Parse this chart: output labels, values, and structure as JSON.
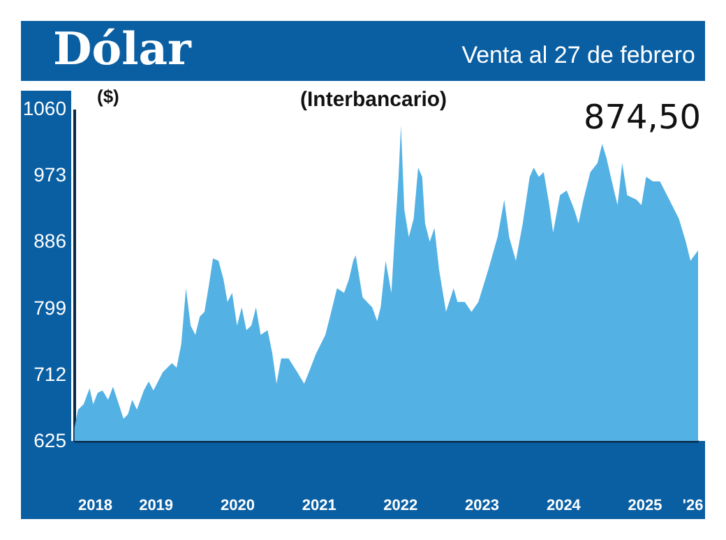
{
  "chart_data": {
    "type": "area",
    "title": "Dólar",
    "subtitle": "Venta al 27 de febrero",
    "ylabel": "($)",
    "annotations": [
      "(Interbancario)",
      "874,50"
    ],
    "x": [
      "2018-07-03",
      "2018-07-19",
      "2018-08-13",
      "2018-09-09",
      "2018-09-25",
      "2018-10-15",
      "2018-11-06",
      "2018-12-01",
      "2018-12-23",
      "2019-01-18",
      "2019-02-08",
      "2019-02-28",
      "2019-03-19",
      "2019-04-09",
      "2019-05-10",
      "2019-06-01",
      "2019-06-22",
      "2019-08-03",
      "2019-09-13",
      "2019-10-04",
      "2019-10-25",
      "2019-11-15",
      "2019-12-06",
      "2019-12-27",
      "2020-01-16",
      "2020-02-06",
      "2020-02-27",
      "2020-03-15",
      "2020-04-09",
      "2020-05-01",
      "2020-05-19",
      "2020-06-09",
      "2020-07-01",
      "2020-07-22",
      "2020-08-12",
      "2020-09-03",
      "2020-09-24",
      "2020-10-15",
      "2020-11-15",
      "2020-12-06",
      "2020-12-25",
      "2021-01-15",
      "2021-02-17",
      "2021-03-28",
      "2021-04-28",
      "2021-05-19",
      "2021-06-21",
      "2021-08-01",
      "2021-08-22",
      "2021-09-22",
      "2021-10-24",
      "2021-11-15",
      "2021-12-04",
      "2021-12-15",
      "2022-01-15",
      "2022-02-27",
      "2022-03-21",
      "2022-04-06",
      "2022-04-28",
      "2022-05-24",
      "2022-06-09",
      "2022-06-25",
      "2022-07-06",
      "2022-07-21",
      "2022-08-10",
      "2022-09-01",
      "2022-09-21",
      "2022-10-09",
      "2022-10-22",
      "2022-11-12",
      "2022-12-03",
      "2022-12-24",
      "2023-01-24",
      "2023-02-27",
      "2023-03-16",
      "2023-04-18",
      "2023-05-18",
      "2023-06-18",
      "2023-08-01",
      "2023-09-12",
      "2023-10-12",
      "2023-11-03",
      "2023-12-03",
      "2024-01-03",
      "2024-02-03",
      "2024-02-21",
      "2024-03-15",
      "2024-04-06",
      "2024-05-01",
      "2024-05-18",
      "2024-06-18",
      "2024-07-18",
      "2024-08-21",
      "2024-09-09",
      "2024-10-01",
      "2024-11-01",
      "2024-12-03",
      "2024-12-24",
      "2025-01-12",
      "2025-02-15",
      "2025-03-03",
      "2025-03-24",
      "2025-04-15",
      "2025-05-27",
      "2025-06-18",
      "2025-07-09",
      "2025-08-09",
      "2025-09-09",
      "2025-10-21",
      "2025-12-03",
      "2026-01-03",
      "2026-01-24",
      "2026-02-27"
    ],
    "series": [
      {
        "color": "#53b1e3",
        "values": [
          642,
          666,
          673,
          694,
          673,
          688,
          691,
          679,
          696,
          673,
          654,
          660,
          679,
          666,
          691,
          703,
          691,
          715,
          727,
          721,
          752,
          825,
          776,
          764,
          788,
          794,
          831,
          864,
          861,
          837,
          807,
          819,
          776,
          800,
          770,
          776,
          800,
          764,
          770,
          740,
          700,
          733,
          733,
          715,
          700,
          715,
          740,
          764,
          788,
          825,
          819,
          837,
          861,
          868,
          813,
          800,
          782,
          800,
          861,
          819,
          898,
          971,
          1038,
          928,
          892,
          916,
          983,
          971,
          910,
          886,
          904,
          849,
          794,
          825,
          807,
          807,
          794,
          807,
          849,
          892,
          941,
          892,
          861,
          910,
          971,
          983,
          971,
          977,
          934,
          898,
          947,
          953,
          928,
          910,
          941,
          977,
          989,
          1014,
          996,
          953,
          934,
          989,
          947,
          941,
          934,
          971,
          965,
          965,
          941,
          916,
          886,
          861,
          874.5
        ]
      }
    ],
    "xlim": [
      "2018-07-01",
      "2026-02-27"
    ],
    "xticks": [
      {
        "value": "2018-10-01",
        "label": "2018"
      },
      {
        "value": "2019-07-01",
        "label": "2019"
      },
      {
        "value": "2020-07-01",
        "label": "2020"
      },
      {
        "value": "2021-07-01",
        "label": "2021"
      },
      {
        "value": "2022-07-01",
        "label": "2022"
      },
      {
        "value": "2023-07-01",
        "label": "2023"
      },
      {
        "value": "2024-07-01",
        "label": "2024"
      },
      {
        "value": "2025-07-01",
        "label": "2025"
      },
      {
        "value": "2026-02-01",
        "label": "'26"
      }
    ],
    "ylim": [
      625,
      1060
    ],
    "yticks": [
      625,
      712,
      799,
      886,
      973,
      1060
    ]
  }
}
